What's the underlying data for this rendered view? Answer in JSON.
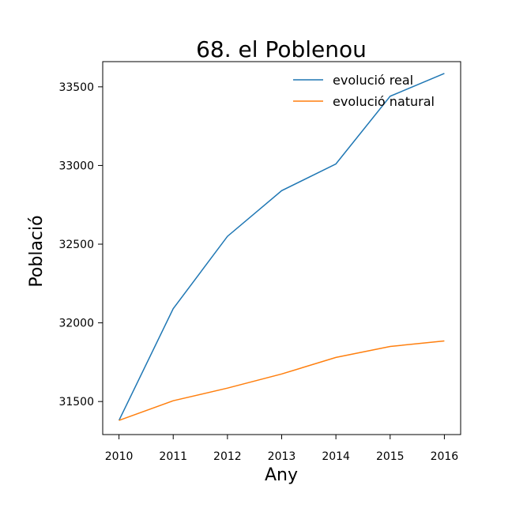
{
  "chart_data": {
    "type": "line",
    "title": "68. el Poblenou",
    "xlabel": "Any",
    "ylabel": "Població",
    "x": [
      2010,
      2011,
      2012,
      2013,
      2014,
      2015,
      2016
    ],
    "x_tick_labels": [
      "2010",
      "2011",
      "2012",
      "2013",
      "2014",
      "2015",
      "2016"
    ],
    "y_ticks": [
      31500,
      32000,
      32500,
      33000,
      33500
    ],
    "y_tick_labels": [
      "31500",
      "32000",
      "32500",
      "33000",
      "33500"
    ],
    "xlim": [
      2009.7,
      2016.3
    ],
    "ylim": [
      31290,
      33660
    ],
    "grid": false,
    "legend_position": "top-right",
    "series": [
      {
        "name": "evolució real",
        "color": "#1f77b4",
        "values": [
          31380,
          32090,
          32550,
          32840,
          33010,
          33440,
          33585
        ]
      },
      {
        "name": "evolució natural",
        "color": "#ff7f0e",
        "values": [
          31380,
          31505,
          31585,
          31675,
          31780,
          31850,
          31885
        ]
      }
    ]
  }
}
